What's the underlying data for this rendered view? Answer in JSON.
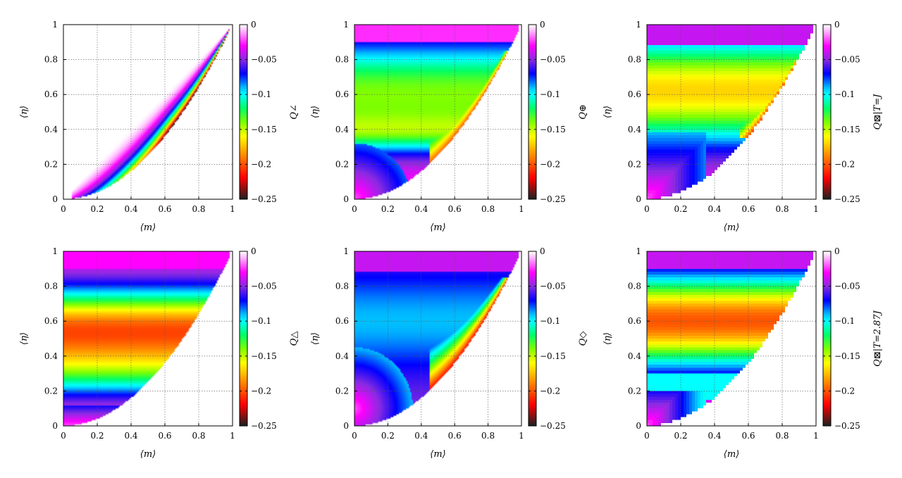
{
  "colorbar": {
    "ticks": [
      0,
      -0.05,
      -0.1,
      -0.15,
      -0.2,
      -0.25
    ],
    "tick_labels": [
      "0",
      "−0.05",
      "−0.1",
      "−0.15",
      "−0.2",
      "−0.25"
    ],
    "stops": [
      {
        "v": 0.0,
        "color": "#ffffff"
      },
      {
        "v": -0.03,
        "color": "#ff00ff"
      },
      {
        "v": -0.05,
        "color": "#8a2be2"
      },
      {
        "v": -0.07,
        "color": "#0000ff"
      },
      {
        "v": -0.09,
        "color": "#00bfff"
      },
      {
        "v": -0.1,
        "color": "#00ffff"
      },
      {
        "v": -0.12,
        "color": "#00ff66"
      },
      {
        "v": -0.14,
        "color": "#7fff00"
      },
      {
        "v": -0.16,
        "color": "#ffff00"
      },
      {
        "v": -0.18,
        "color": "#ffaa00"
      },
      {
        "v": -0.2,
        "color": "#ff5500"
      },
      {
        "v": -0.22,
        "color": "#ff0000"
      },
      {
        "v": -0.25,
        "color": "#202020"
      }
    ]
  },
  "chart_data": [
    {
      "type": "heatmap",
      "id": "p1",
      "xlabel": "⟨m⟩",
      "ylabel": "⟨η⟩",
      "cblabel": "Q∠",
      "xlim": [
        0,
        1
      ],
      "ylim": [
        0,
        1
      ],
      "xticks": [
        0,
        0.2,
        0.4,
        0.6,
        0.8,
        1
      ],
      "xtick_labels": [
        "0",
        "0.2",
        "0.4",
        "0.6",
        "0.8",
        "1"
      ],
      "yticks": [
        0,
        0.2,
        0.4,
        0.6,
        0.8,
        1
      ],
      "ytick_labels": [
        "0",
        "0.2",
        "0.4",
        "0.6",
        "0.8",
        "1"
      ],
      "grid": true,
      "boundary": "eta = m^2",
      "pixelated": false,
      "sample_values": [
        {
          "m": 0.1,
          "eta": 0.6,
          "q": 0.0
        },
        {
          "m": 0.5,
          "eta": 0.5,
          "q": -0.09
        },
        {
          "m": 0.7,
          "eta": 0.55,
          "q": -0.2
        }
      ]
    },
    {
      "type": "heatmap",
      "id": "p2",
      "xlabel": "⟨m⟩",
      "ylabel": "⟨η⟩",
      "cblabel": "Q⊕",
      "xlim": [
        0,
        1
      ],
      "ylim": [
        0,
        1
      ],
      "xticks": [
        0,
        0.2,
        0.4,
        0.6,
        0.8,
        1
      ],
      "xtick_labels": [
        "0",
        "0.2",
        "0.4",
        "0.6",
        "0.8",
        "1"
      ],
      "yticks": [
        0,
        0.2,
        0.4,
        0.6,
        0.8,
        1
      ],
      "ytick_labels": [
        "0",
        "0.2",
        "0.4",
        "0.6",
        "0.8",
        "1"
      ],
      "grid": true,
      "boundary": "eta = m^2",
      "pixelated": false,
      "sample_values": [
        {
          "m": 0.1,
          "eta": 0.95,
          "q": -0.03
        },
        {
          "m": 0.1,
          "eta": 0.6,
          "q": -0.14
        },
        {
          "m": 0.1,
          "eta": 0.1,
          "q": -0.02
        }
      ]
    },
    {
      "type": "heatmap",
      "id": "p3",
      "xlabel": "⟨m⟩",
      "ylabel": "⟨η⟩",
      "cblabel": "Q⊠|T=J",
      "xlim": [
        0,
        1
      ],
      "ylim": [
        0,
        1
      ],
      "xticks": [
        0,
        0.2,
        0.4,
        0.6,
        0.8,
        1
      ],
      "xtick_labels": [
        "0",
        "0.2",
        "0.4",
        "0.6",
        "0.8",
        "1"
      ],
      "yticks": [
        0,
        0.2,
        0.4,
        0.6,
        0.8,
        1
      ],
      "ytick_labels": [
        "0",
        "0.2",
        "0.4",
        "0.6",
        "0.8",
        "1"
      ],
      "grid": true,
      "boundary": "eta = m^2",
      "pixelated": true,
      "sample_values": [
        {
          "m": 0.1,
          "eta": 0.95,
          "q": -0.04
        },
        {
          "m": 0.3,
          "eta": 0.6,
          "q": -0.16
        },
        {
          "m": 0.1,
          "eta": 0.1,
          "q": -0.02
        }
      ]
    },
    {
      "type": "heatmap",
      "id": "p4",
      "xlabel": "⟨m⟩",
      "ylabel": "⟨η⟩",
      "cblabel": "Q△",
      "xlim": [
        0,
        1
      ],
      "ylim": [
        0,
        1
      ],
      "xticks": [
        0,
        0.2,
        0.4,
        0.6,
        0.8,
        1
      ],
      "xtick_labels": [
        "0",
        "0.2",
        "0.4",
        "0.6",
        "0.8",
        "1"
      ],
      "yticks": [
        0,
        0.2,
        0.4,
        0.6,
        0.8,
        1
      ],
      "ytick_labels": [
        "0",
        "0.2",
        "0.4",
        "0.6",
        "0.8",
        "1"
      ],
      "grid": true,
      "boundary": "eta = m^2",
      "pixelated": false,
      "sample_values": [
        {
          "m": 0.3,
          "eta": 0.95,
          "q": -0.03
        },
        {
          "m": 0.3,
          "eta": 0.55,
          "q": -0.2
        },
        {
          "m": 0.1,
          "eta": 0.03,
          "q": -0.02
        }
      ]
    },
    {
      "type": "heatmap",
      "id": "p5",
      "xlabel": "⟨m⟩",
      "ylabel": "⟨η⟩",
      "cblabel": "Q◇",
      "xlim": [
        0,
        1
      ],
      "ylim": [
        0,
        1
      ],
      "xticks": [
        0,
        0.2,
        0.4,
        0.6,
        0.8,
        1
      ],
      "xtick_labels": [
        "0",
        "0.2",
        "0.4",
        "0.6",
        "0.8",
        "1"
      ],
      "yticks": [
        0,
        0.2,
        0.4,
        0.6,
        0.8,
        1
      ],
      "ytick_labels": [
        "0",
        "0.2",
        "0.4",
        "0.6",
        "0.8",
        "1"
      ],
      "grid": true,
      "boundary": "eta = m^2",
      "pixelated": false,
      "sample_values": [
        {
          "m": 0.3,
          "eta": 0.9,
          "q": -0.05
        },
        {
          "m": 0.3,
          "eta": 0.6,
          "q": -0.09
        },
        {
          "m": 0.7,
          "eta": 0.55,
          "q": -0.19
        }
      ]
    },
    {
      "type": "heatmap",
      "id": "p6",
      "xlabel": "⟨m⟩",
      "ylabel": "⟨η⟩",
      "cblabel": "Q⊠|T=2.87J",
      "xlim": [
        0,
        1
      ],
      "ylim": [
        0,
        1
      ],
      "xticks": [
        0,
        0.2,
        0.4,
        0.6,
        0.8,
        1
      ],
      "xtick_labels": [
        "0",
        "0.2",
        "0.4",
        "0.6",
        "0.8",
        "1"
      ],
      "yticks": [
        0,
        0.2,
        0.4,
        0.6,
        0.8,
        1
      ],
      "ytick_labels": [
        "0",
        "0.2",
        "0.4",
        "0.6",
        "0.8",
        "1"
      ],
      "grid": true,
      "boundary": "eta = m^2",
      "pixelated": true,
      "sample_values": [
        {
          "m": 0.1,
          "eta": 0.95,
          "q": -0.04
        },
        {
          "m": 0.3,
          "eta": 0.6,
          "q": -0.19
        },
        {
          "m": 0.1,
          "eta": 0.1,
          "q": -0.03
        }
      ]
    }
  ]
}
